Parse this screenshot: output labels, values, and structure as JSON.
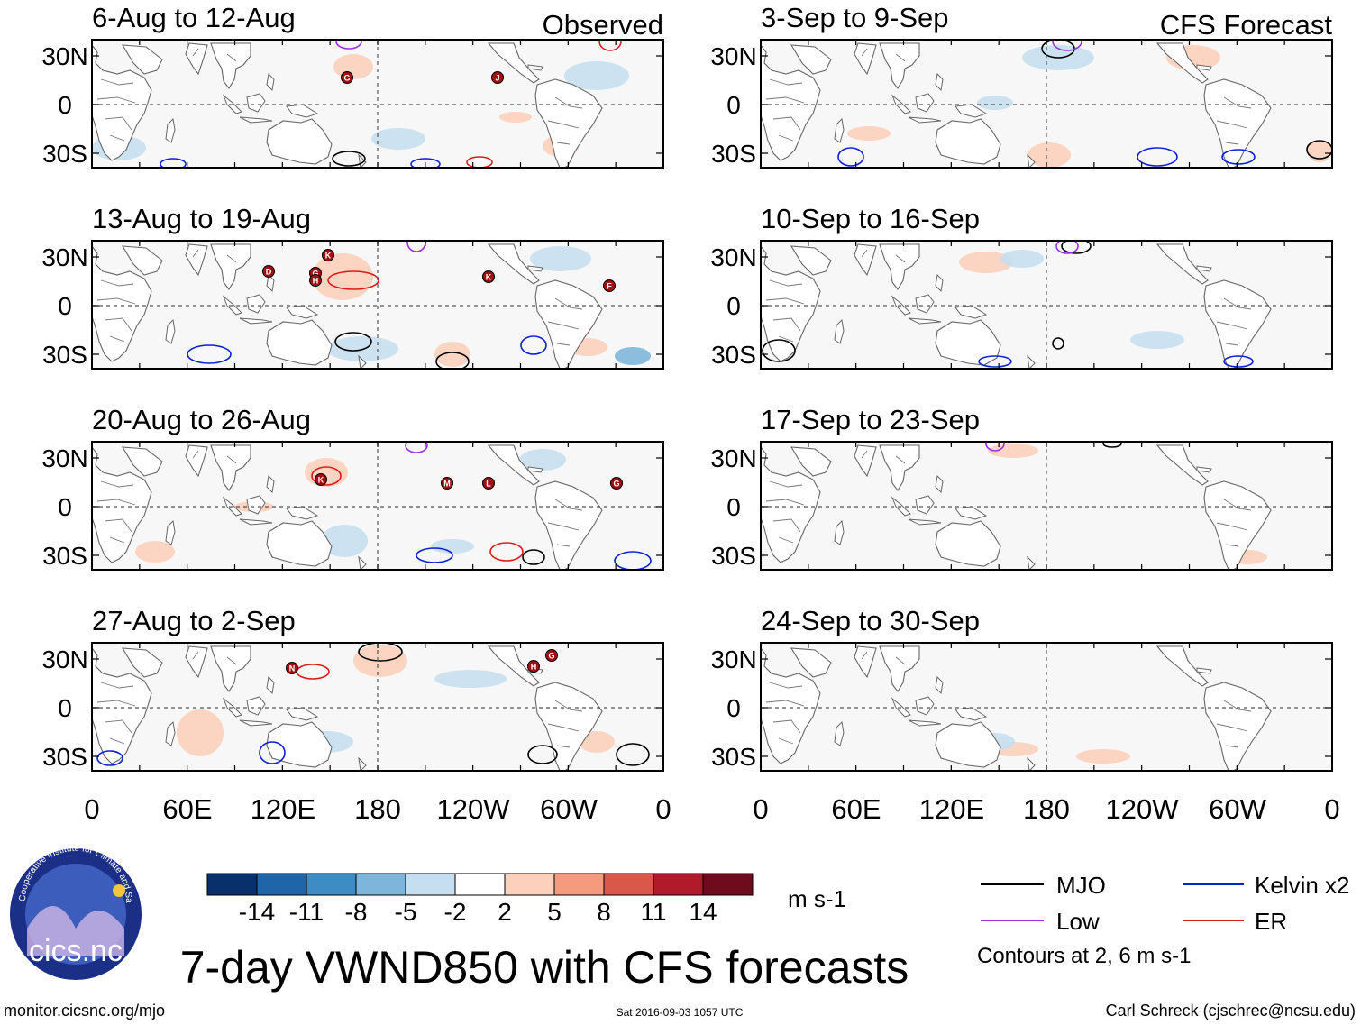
{
  "columns": {
    "observed": "Observed",
    "forecast": "CFS Forecast"
  },
  "panels": {
    "observed": [
      "6-Aug to 12-Aug",
      "13-Aug to 19-Aug",
      "20-Aug to 26-Aug",
      "27-Aug to 2-Sep"
    ],
    "forecast": [
      "3-Sep to 9-Sep",
      "10-Sep to 16-Sep",
      "17-Sep to 23-Sep",
      "24-Sep to 30-Sep"
    ]
  },
  "axes": {
    "lat_ticks": [
      "30N",
      "0",
      "30S"
    ],
    "lon_ticks": [
      "0",
      "60E",
      "120E",
      "180",
      "120W",
      "60W",
      "0"
    ]
  },
  "storms": [
    [
      "G",
      "J"
    ],
    [
      "D",
      "G",
      "H",
      "K",
      "K",
      "F"
    ],
    [
      "K",
      "M",
      "L",
      "G"
    ],
    [
      "N",
      "H",
      "G"
    ]
  ],
  "colorbar": {
    "labels": [
      "-14",
      "-11",
      "-8",
      "-5",
      "-2",
      "2",
      "5",
      "8",
      "11",
      "14"
    ],
    "colors": [
      "#08306b",
      "#1f65a8",
      "#3d8cc4",
      "#7db6da",
      "#c6dff0",
      "#ffffff",
      "#fcd0bb",
      "#f39b7c",
      "#d9584a",
      "#b01a2a",
      "#6e0b1c"
    ],
    "units": "m s-1"
  },
  "legend": {
    "items": [
      {
        "label": "MJO",
        "color": "#000000"
      },
      {
        "label": "Kelvin x2",
        "color": "#0a1fd8"
      },
      {
        "label": "Low",
        "color": "#9b30e0"
      },
      {
        "label": "ER",
        "color": "#e01818"
      }
    ],
    "note": "Contours at 2, 6 m s-1"
  },
  "logo": {
    "text": "cics.nc",
    "ring_text": "Cooperative Institute for Climate and Satellites"
  },
  "title": "7-day VWND850 with CFS forecasts",
  "footer": {
    "url": "monitor.cicsnc.org/mjo",
    "timestamp": "Sat 2016-09-03 1057 UTC",
    "credit": "Carl Schreck (cjschrec@ncsu.edu)"
  }
}
